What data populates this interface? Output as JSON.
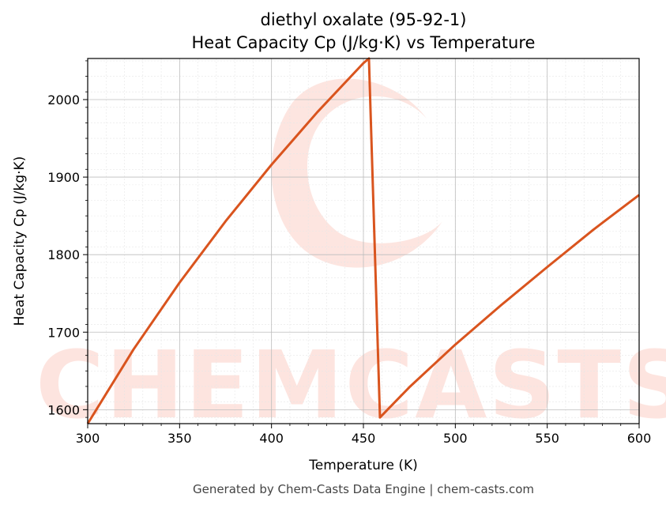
{
  "chart_data": {
    "type": "line",
    "title": "diethyl oxalate (95-92-1)",
    "subtitle": "Heat Capacity Cp (J/kg·K) vs Temperature",
    "xlabel": "Temperature (K)",
    "ylabel": "Heat Capacity Cp (J/kg·K)",
    "xlim": [
      300,
      600
    ],
    "ylim": [
      1582,
      2053
    ],
    "xticks": [
      300,
      350,
      400,
      450,
      500,
      550,
      600
    ],
    "yticks": [
      1600,
      1700,
      1800,
      1900,
      2000
    ],
    "grid": true,
    "line_color": "#d9541e",
    "series": [
      {
        "x": [
          300,
          325,
          350,
          375,
          400,
          425,
          450,
          453,
          459,
          475,
          500,
          525,
          550,
          575,
          600
        ],
        "y": [
          1582,
          1678,
          1764,
          1843,
          1916,
          1984,
          2047,
          2053,
          1590,
          1629,
          1684,
          1735,
          1784,
          1832,
          1877
        ]
      }
    ]
  },
  "watermark": {
    "text": "CHEMCASTS",
    "color": "#fde0da"
  },
  "footer": "Generated by Chem-Casts Data Engine | chem-casts.com"
}
